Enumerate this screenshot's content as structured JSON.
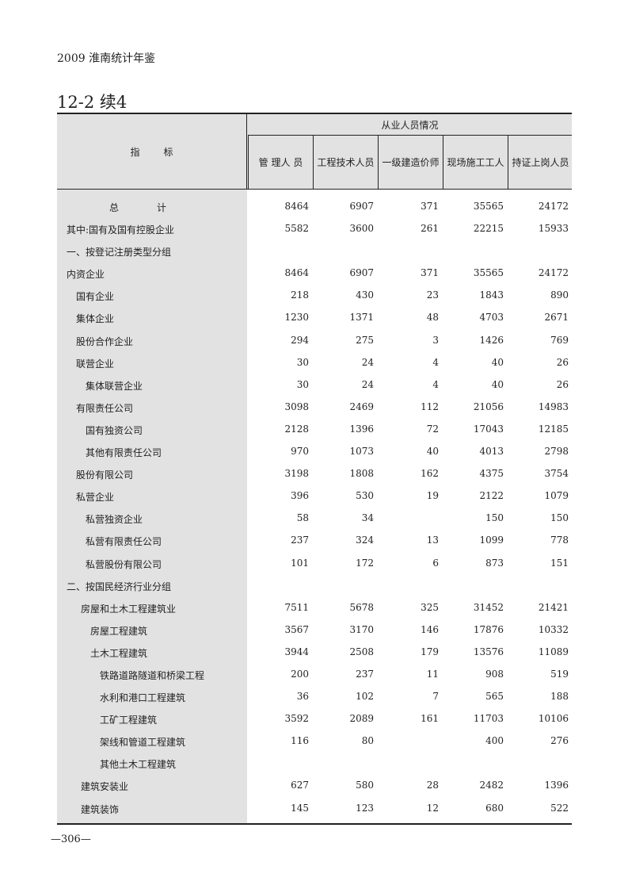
{
  "running_head": "2009 淮南统计年鉴",
  "table_title": "12-2 续4",
  "header": {
    "indicator_label": "指标",
    "group_label": "从业人员情况",
    "columns": [
      {
        "line1": "管 理",
        "line2": "人 员"
      },
      {
        "line1": "工程技",
        "line2": "术人员"
      },
      {
        "line1": "一级建",
        "line2": "造价师"
      },
      {
        "line1": "现场施",
        "line2": "工工人"
      },
      {
        "line1": "持证上",
        "line2": "岗人员"
      }
    ]
  },
  "rows": [
    {
      "label": "总　　　　计",
      "level": -1,
      "values": [
        "8464",
        "6907",
        "371",
        "35565",
        "24172"
      ]
    },
    {
      "label": "其中:国有及国有控股企业",
      "level": 0,
      "values": [
        "5582",
        "3600",
        "261",
        "22215",
        "15933"
      ]
    },
    {
      "label": "一、按登记注册类型分组",
      "level": 0,
      "values": [
        "",
        "",
        "",
        "",
        ""
      ]
    },
    {
      "label": "内资企业",
      "level": 0,
      "values": [
        "8464",
        "6907",
        "371",
        "35565",
        "24172"
      ]
    },
    {
      "label": "国有企业",
      "level": 1,
      "values": [
        "218",
        "430",
        "23",
        "1843",
        "890"
      ]
    },
    {
      "label": "集体企业",
      "level": 1,
      "values": [
        "1230",
        "1371",
        "48",
        "4703",
        "2671"
      ]
    },
    {
      "label": "股份合作企业",
      "level": 1,
      "values": [
        "294",
        "275",
        "3",
        "1426",
        "769"
      ]
    },
    {
      "label": "联营企业",
      "level": 1,
      "values": [
        "30",
        "24",
        "4",
        "40",
        "26"
      ]
    },
    {
      "label": "集体联营企业",
      "level": 2,
      "values": [
        "30",
        "24",
        "4",
        "40",
        "26"
      ]
    },
    {
      "label": "有限责任公司",
      "level": 1,
      "values": [
        "3098",
        "2469",
        "112",
        "21056",
        "14983"
      ]
    },
    {
      "label": "国有独资公司",
      "level": 2,
      "values": [
        "2128",
        "1396",
        "72",
        "17043",
        "12185"
      ]
    },
    {
      "label": "其他有限责任公司",
      "level": 2,
      "values": [
        "970",
        "1073",
        "40",
        "4013",
        "2798"
      ]
    },
    {
      "label": "股份有限公司",
      "level": 1,
      "values": [
        "3198",
        "1808",
        "162",
        "4375",
        "3754"
      ]
    },
    {
      "label": "私营企业",
      "level": 1,
      "values": [
        "396",
        "530",
        "19",
        "2122",
        "1079"
      ]
    },
    {
      "label": "私营独资企业",
      "level": 2,
      "values": [
        "58",
        "34",
        "",
        "150",
        "150"
      ]
    },
    {
      "label": "私营有限责任公司",
      "level": 2,
      "values": [
        "237",
        "324",
        "13",
        "1099",
        "778"
      ]
    },
    {
      "label": "私营股份有限公司",
      "level": 2,
      "values": [
        "101",
        "172",
        "6",
        "873",
        "151"
      ]
    },
    {
      "label": "二、按国民经济行业分组",
      "level": 0,
      "values": [
        "",
        "",
        "",
        "",
        ""
      ]
    },
    {
      "label": "房屋和土木工程建筑业",
      "level": 1.5,
      "values": [
        "7511",
        "5678",
        "325",
        "31452",
        "21421"
      ]
    },
    {
      "label": "房屋工程建筑",
      "level": 2.5,
      "values": [
        "3567",
        "3170",
        "146",
        "17876",
        "10332"
      ]
    },
    {
      "label": "土木工程建筑",
      "level": 2.5,
      "values": [
        "3944",
        "2508",
        "179",
        "13576",
        "11089"
      ]
    },
    {
      "label": "铁路道路隧道和桥梁工程",
      "level": 3.5,
      "values": [
        "200",
        "237",
        "11",
        "908",
        "519"
      ]
    },
    {
      "label": "水利和港口工程建筑",
      "level": 3.5,
      "values": [
        "36",
        "102",
        "7",
        "565",
        "188"
      ]
    },
    {
      "label": "工矿工程建筑",
      "level": 3.5,
      "values": [
        "3592",
        "2089",
        "161",
        "11703",
        "10106"
      ]
    },
    {
      "label": "架线和管道工程建筑",
      "level": 3.5,
      "values": [
        "116",
        "80",
        "",
        "400",
        "276"
      ]
    },
    {
      "label": "其他土木工程建筑",
      "level": 3.5,
      "values": [
        "",
        "",
        "",
        "",
        ""
      ]
    },
    {
      "label": "建筑安装业",
      "level": 1.5,
      "values": [
        "627",
        "580",
        "28",
        "2482",
        "1396"
      ]
    },
    {
      "label": "建筑装饰",
      "level": 1.5,
      "values": [
        "145",
        "123",
        "12",
        "680",
        "522"
      ]
    }
  ],
  "page_number": "—306—"
}
